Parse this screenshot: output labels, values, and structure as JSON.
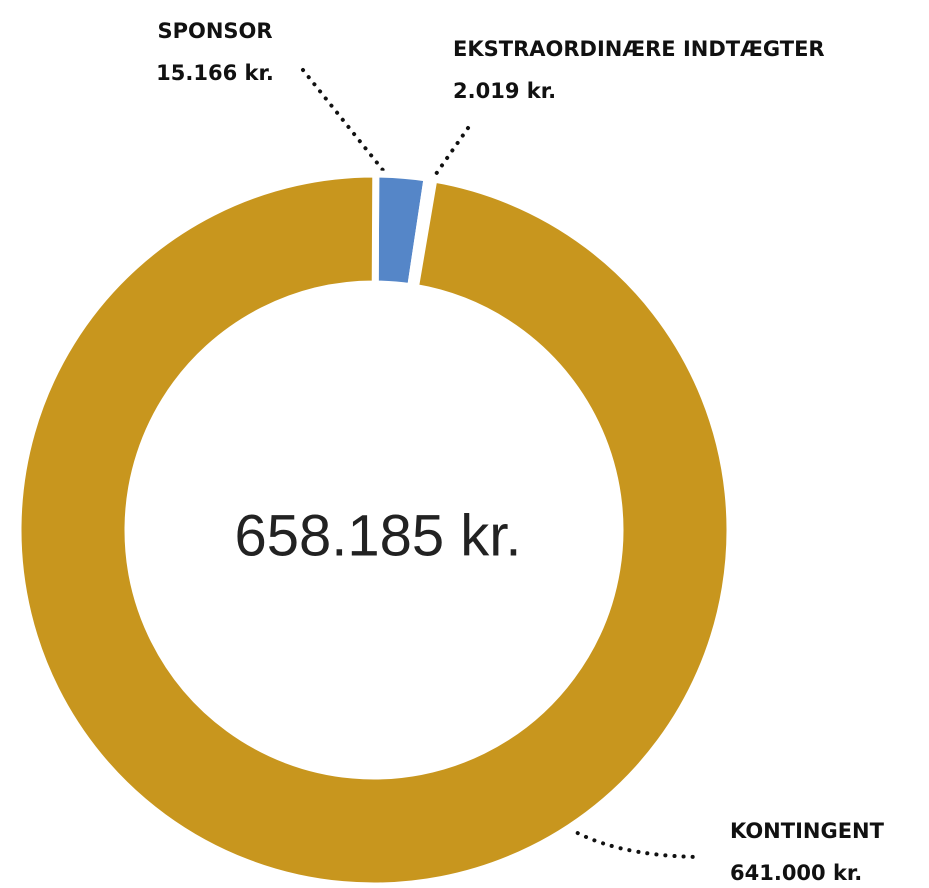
{
  "chart_data": {
    "type": "donut",
    "categories": [
      "SPONSOR",
      "EKSTRAORDINÆRE INDTÆGTER",
      "KONTINGENT"
    ],
    "values": [
      15166,
      2019,
      641000
    ],
    "value_labels": [
      "15.166 kr.",
      "2.019 kr.",
      "641.000 kr."
    ],
    "colors": [
      "#5586c8",
      "#f4f1ea",
      "#c8961e"
    ],
    "total": {
      "value": 658185,
      "label": "658.185 kr."
    }
  }
}
